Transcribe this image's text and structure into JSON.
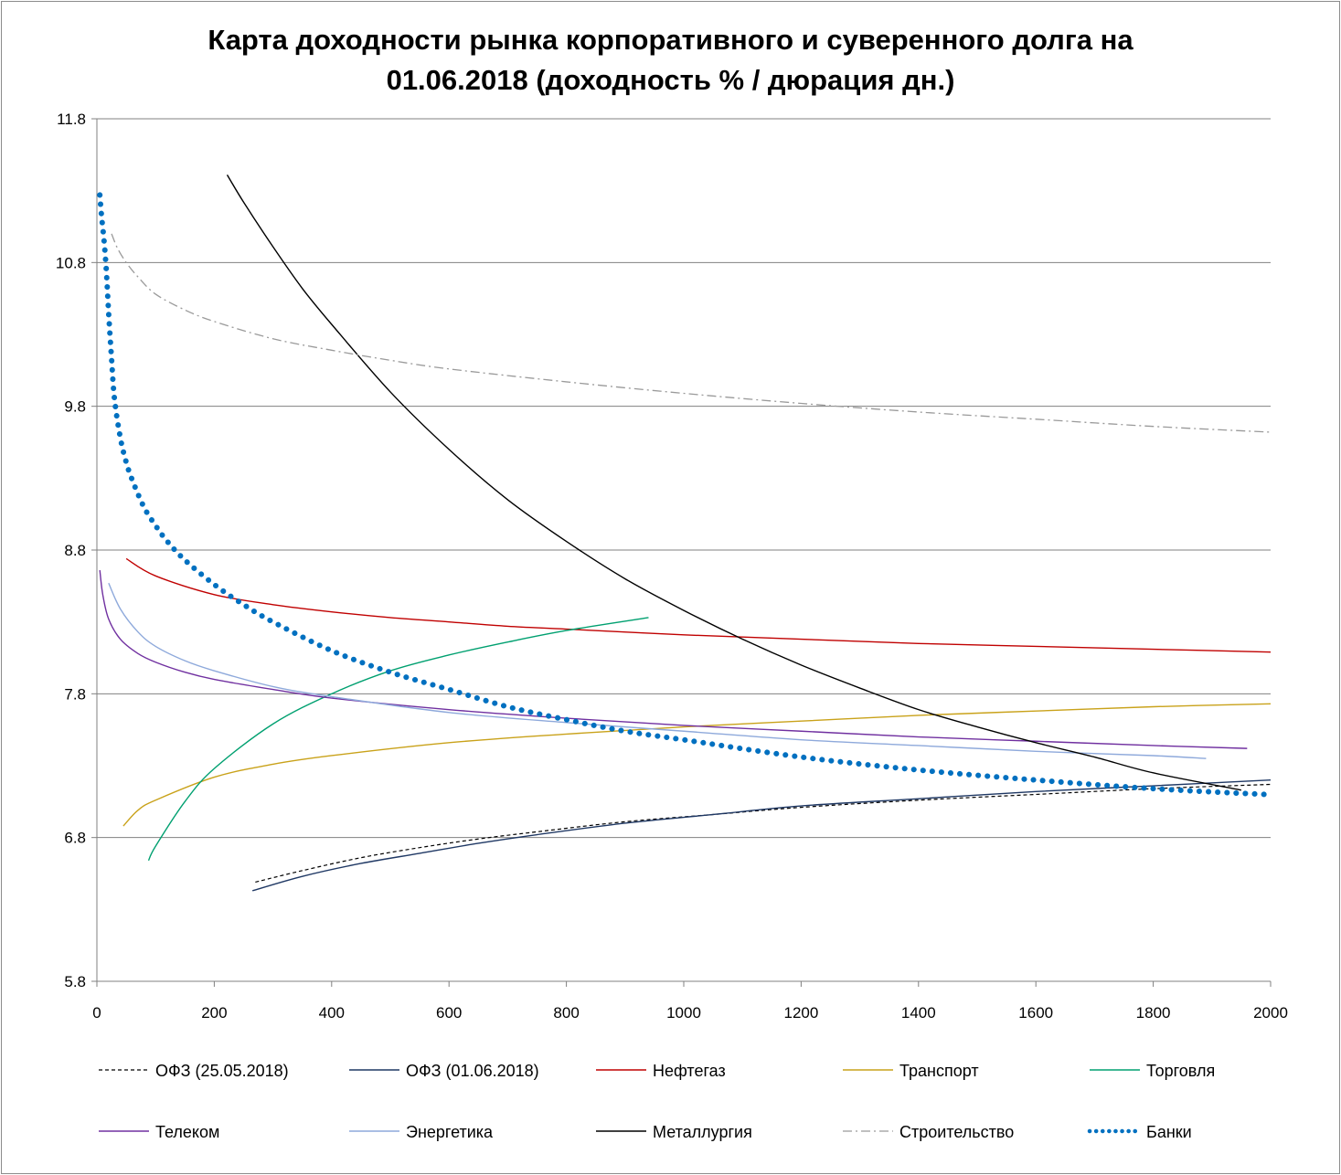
{
  "title_line1": "Карта доходности рынка корпоративного и суверенного долга на",
  "title_line2": "01.06.2018 (доходность % / дюрация дн.)",
  "chart_data": {
    "type": "line",
    "title": "Карта доходности рынка корпоративного и суверенного долга на 01.06.2018 (доходность % / дюрация дн.)",
    "xlabel": "",
    "ylabel": "",
    "xlim": [
      0,
      2000
    ],
    "ylim": [
      5.8,
      11.8
    ],
    "xticks": [
      "0",
      "200",
      "400",
      "600",
      "800",
      "1000",
      "1200",
      "1400",
      "1600",
      "1800",
      "2000"
    ],
    "yticks": [
      "5.8",
      "6.8",
      "7.8",
      "8.8",
      "9.8",
      "10.8",
      "11.8"
    ],
    "grid": "horizontal",
    "legend_position": "bottom",
    "series": [
      {
        "name": "ОФЗ (25.05.2018)",
        "color": "#000000",
        "dash": "4,3",
        "width": 1.2,
        "x": [
          270,
          350,
          450,
          550,
          650,
          750,
          900,
          1050,
          1200,
          1400,
          1600,
          1800,
          2000
        ],
        "y": [
          6.49,
          6.57,
          6.66,
          6.73,
          6.79,
          6.84,
          6.91,
          6.96,
          7.01,
          7.06,
          7.1,
          7.14,
          7.17
        ]
      },
      {
        "name": "ОФЗ (01.06.2018)",
        "color": "#1f3864",
        "dash": "",
        "width": 1.4,
        "x": [
          265,
          350,
          450,
          550,
          650,
          750,
          900,
          1050,
          1200,
          1400,
          1600,
          1800,
          2000
        ],
        "y": [
          6.43,
          6.53,
          6.62,
          6.69,
          6.76,
          6.82,
          6.9,
          6.96,
          7.02,
          7.07,
          7.12,
          7.16,
          7.2
        ]
      },
      {
        "name": "Нефтегаз",
        "color": "#c00000",
        "dash": "",
        "width": 1.4,
        "x": [
          50,
          100,
          200,
          300,
          400,
          500,
          600,
          700,
          800,
          1000,
          1200,
          1400,
          1600,
          1800,
          2000
        ],
        "y": [
          8.74,
          8.62,
          8.49,
          8.42,
          8.37,
          8.33,
          8.3,
          8.27,
          8.25,
          8.21,
          8.18,
          8.15,
          8.13,
          8.11,
          8.09
        ]
      },
      {
        "name": "Транспорт",
        "color": "#c9a21a",
        "dash": "",
        "width": 1.4,
        "x": [
          45,
          70,
          100,
          200,
          300,
          400,
          600,
          800,
          1000,
          1200,
          1400,
          1600,
          1800,
          2000
        ],
        "y": [
          6.88,
          6.99,
          7.06,
          7.22,
          7.31,
          7.37,
          7.46,
          7.52,
          7.57,
          7.61,
          7.65,
          7.68,
          7.71,
          7.73
        ]
      },
      {
        "name": "Торговля",
        "color": "#00a070",
        "dash": "",
        "width": 1.4,
        "x": [
          88,
          100,
          150,
          200,
          300,
          400,
          500,
          600,
          700,
          800,
          940
        ],
        "y": [
          6.64,
          6.74,
          7.05,
          7.28,
          7.59,
          7.8,
          7.96,
          8.07,
          8.16,
          8.24,
          8.33
        ]
      },
      {
        "name": "Телеком",
        "color": "#7030a0",
        "dash": "",
        "width": 1.4,
        "x": [
          5,
          10,
          20,
          40,
          70,
          100,
          150,
          200,
          300,
          400,
          600,
          800,
          1000,
          1200,
          1400,
          1600,
          1800,
          1960
        ],
        "y": [
          8.66,
          8.49,
          8.32,
          8.18,
          8.08,
          8.02,
          7.95,
          7.9,
          7.83,
          7.77,
          7.69,
          7.63,
          7.58,
          7.54,
          7.5,
          7.47,
          7.44,
          7.42
        ]
      },
      {
        "name": "Энергетика",
        "color": "#8ea9db",
        "dash": "",
        "width": 1.4,
        "x": [
          20,
          40,
          70,
          100,
          150,
          200,
          300,
          400,
          600,
          800,
          1000,
          1200,
          1400,
          1600,
          1800,
          1890
        ],
        "y": [
          8.57,
          8.39,
          8.23,
          8.13,
          8.03,
          7.96,
          7.85,
          7.78,
          7.67,
          7.6,
          7.54,
          7.48,
          7.44,
          7.4,
          7.37,
          7.35
        ]
      },
      {
        "name": "Металлургия",
        "color": "#000000",
        "dash": "",
        "width": 1.4,
        "x": [
          222,
          250,
          300,
          350,
          400,
          500,
          600,
          700,
          800,
          900,
          1000,
          1100,
          1200,
          1300,
          1400,
          1500,
          1600,
          1700,
          1800,
          1950
        ],
        "y": [
          11.41,
          11.22,
          10.91,
          10.62,
          10.37,
          9.9,
          9.5,
          9.15,
          8.86,
          8.6,
          8.38,
          8.18,
          8.0,
          7.84,
          7.69,
          7.57,
          7.46,
          7.36,
          7.25,
          7.13
        ]
      },
      {
        "name": "Строительство",
        "color": "#9a9a9a",
        "dash": "10,4,2,4",
        "width": 1.3,
        "x": [
          25,
          35,
          50,
          70,
          100,
          150,
          200,
          300,
          400,
          500,
          600,
          800,
          1000,
          1200,
          1400,
          1600,
          1800,
          2000
        ],
        "y": [
          11.0,
          10.9,
          10.8,
          10.7,
          10.58,
          10.47,
          10.39,
          10.27,
          10.19,
          10.12,
          10.06,
          9.97,
          9.89,
          9.82,
          9.76,
          9.71,
          9.66,
          9.62
        ]
      },
      {
        "name": "Банки",
        "color": "#0070c0",
        "dash": "0.1,10",
        "width": 6,
        "x": [
          5,
          8,
          12,
          16,
          20,
          25,
          30,
          40,
          50,
          60,
          80,
          100,
          120,
          150,
          200,
          250,
          300,
          400,
          500,
          600,
          700,
          800,
          900,
          1000,
          1200,
          1400,
          1600,
          1800,
          1990
        ],
        "y": [
          11.27,
          11.12,
          10.96,
          10.75,
          10.45,
          10.13,
          9.85,
          9.58,
          9.41,
          9.29,
          9.1,
          8.97,
          8.86,
          8.73,
          8.56,
          8.42,
          8.3,
          8.1,
          7.95,
          7.83,
          7.71,
          7.62,
          7.54,
          7.48,
          7.36,
          7.27,
          7.2,
          7.14,
          7.1
        ]
      }
    ]
  }
}
